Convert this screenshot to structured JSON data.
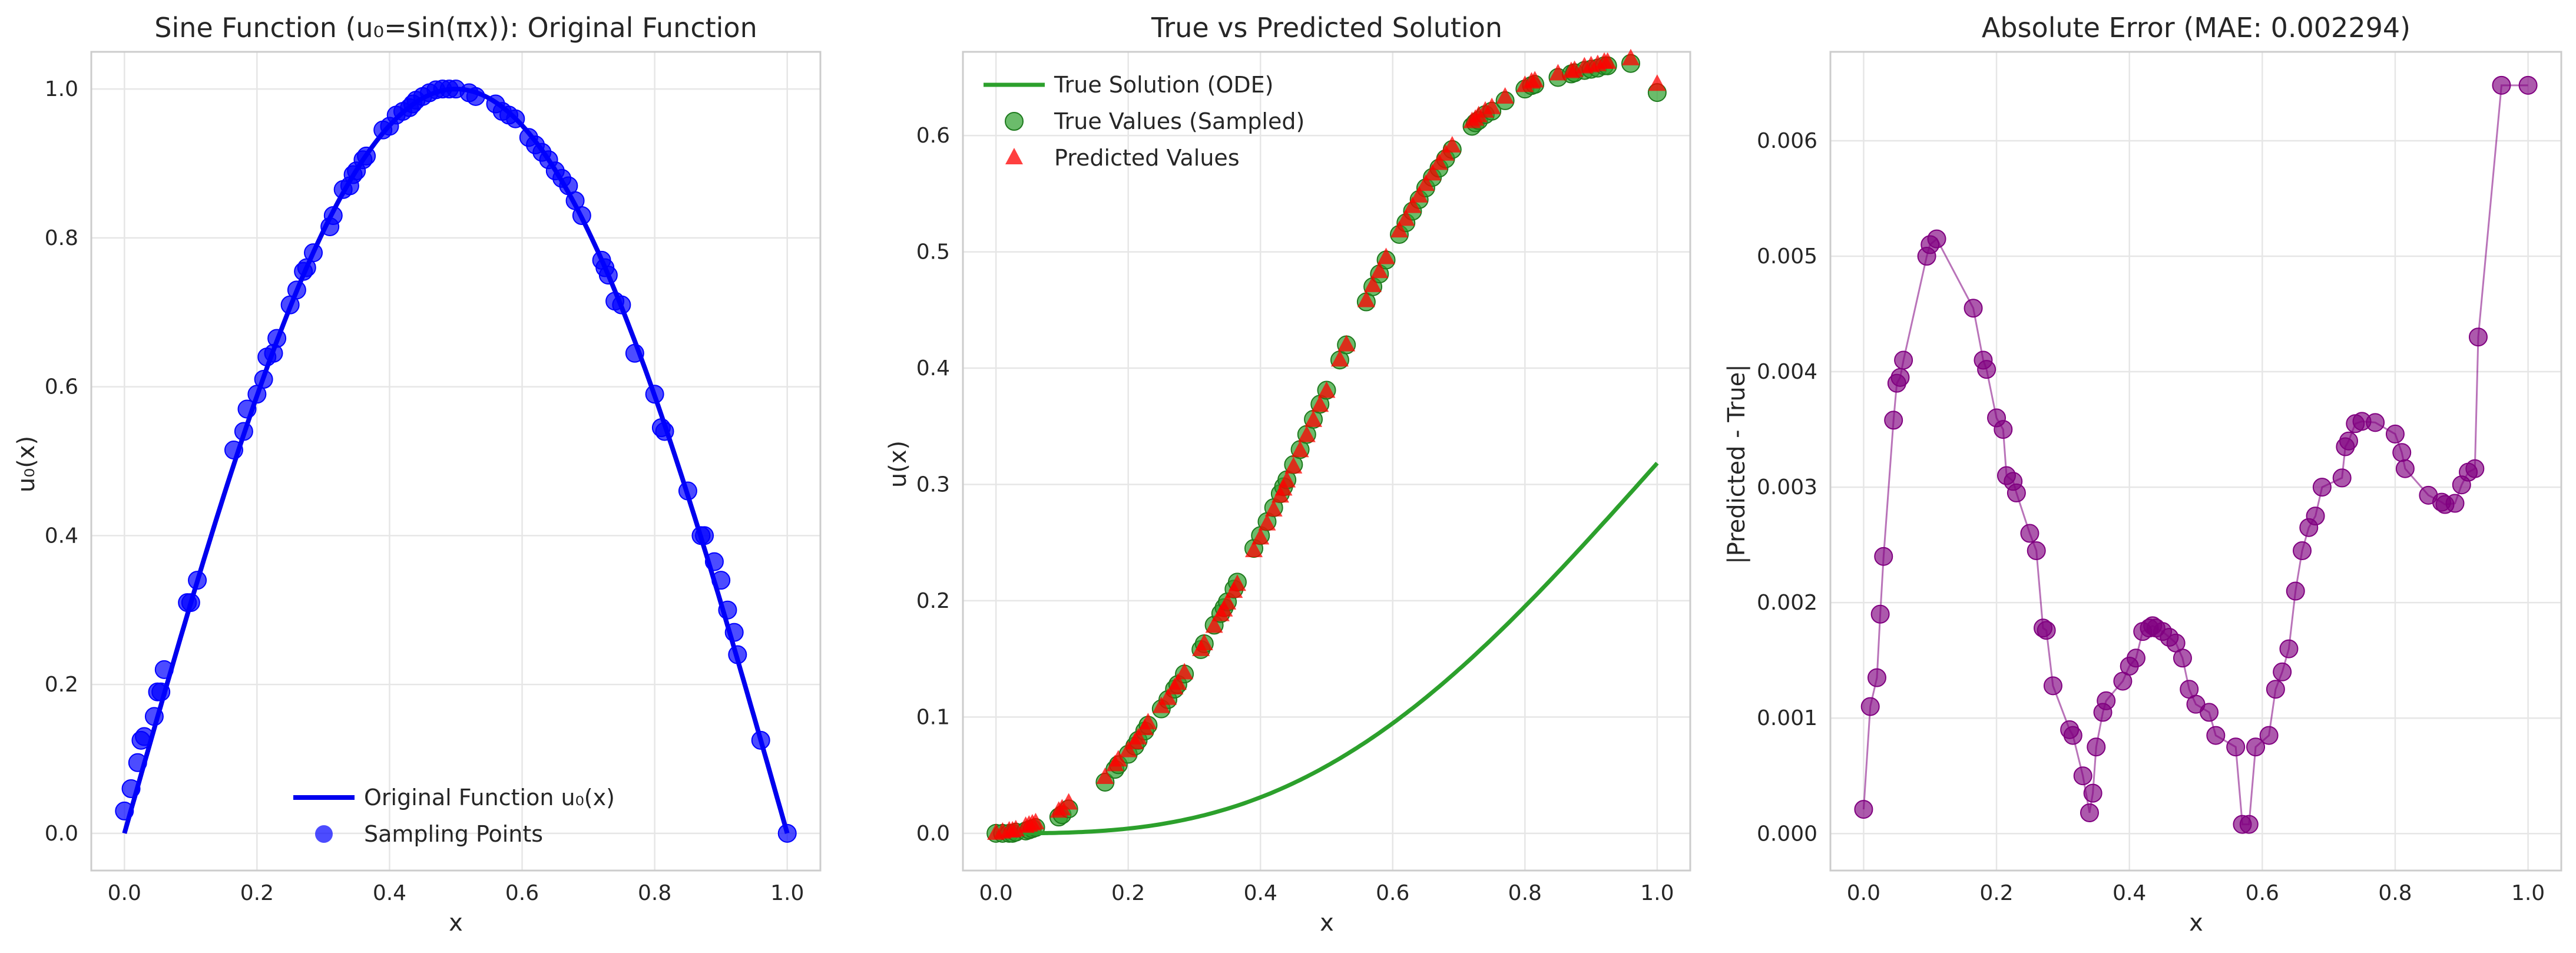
{
  "chart_data": [
    {
      "type": "line",
      "title": "Sine Function (u₀=sin(πx)): Original Function",
      "xlabel": "x",
      "ylabel": "u₀(x)",
      "xlim": [
        -0.05,
        1.05
      ],
      "ylim": [
        -0.05,
        1.05
      ],
      "xticks": [
        "0.0",
        "0.2",
        "0.4",
        "0.6",
        "0.8",
        "1.0"
      ],
      "yticks": [
        "0.0",
        "0.2",
        "0.4",
        "0.6",
        "0.8",
        "1.0"
      ],
      "grid": true,
      "legend_position": "lower-center",
      "colors": {
        "line": "#0000ee",
        "points": "#0000ff"
      },
      "series": [
        {
          "name": "Original Function u₀(x)",
          "kind": "line",
          "function": "sin(πx)",
          "x_range": [
            0,
            1
          ]
        },
        {
          "name": "Sampling Points",
          "kind": "scatter",
          "x": [
            0.0,
            0.01,
            0.02,
            0.025,
            0.03,
            0.045,
            0.05,
            0.055,
            0.06,
            0.095,
            0.1,
            0.11,
            0.165,
            0.18,
            0.185,
            0.2,
            0.21,
            0.215,
            0.225,
            0.23,
            0.25,
            0.26,
            0.27,
            0.275,
            0.285,
            0.31,
            0.315,
            0.33,
            0.34,
            0.345,
            0.35,
            0.36,
            0.365,
            0.39,
            0.4,
            0.41,
            0.42,
            0.43,
            0.435,
            0.44,
            0.45,
            0.46,
            0.47,
            0.48,
            0.49,
            0.5,
            0.52,
            0.53,
            0.56,
            0.57,
            0.58,
            0.59,
            0.61,
            0.62,
            0.63,
            0.64,
            0.65,
            0.66,
            0.67,
            0.68,
            0.69,
            0.72,
            0.725,
            0.73,
            0.74,
            0.75,
            0.77,
            0.8,
            0.81,
            0.815,
            0.85,
            0.87,
            0.875,
            0.89,
            0.9,
            0.91,
            0.92,
            0.925,
            0.96,
            1.0
          ],
          "y": [
            0.03,
            0.06,
            0.095,
            0.125,
            0.13,
            0.157,
            0.19,
            0.19,
            0.22,
            0.31,
            0.31,
            0.34,
            0.515,
            0.54,
            0.57,
            0.59,
            0.61,
            0.64,
            0.645,
            0.665,
            0.71,
            0.73,
            0.755,
            0.76,
            0.78,
            0.815,
            0.83,
            0.865,
            0.87,
            0.885,
            0.89,
            0.905,
            0.91,
            0.945,
            0.95,
            0.965,
            0.97,
            0.975,
            0.98,
            0.985,
            0.99,
            0.995,
            0.999,
            1.0,
            1.0,
            1.0,
            0.995,
            0.99,
            0.98,
            0.97,
            0.965,
            0.96,
            0.935,
            0.925,
            0.915,
            0.905,
            0.89,
            0.88,
            0.87,
            0.85,
            0.83,
            0.77,
            0.76,
            0.75,
            0.715,
            0.71,
            0.645,
            0.59,
            0.545,
            0.54,
            0.46,
            0.4,
            0.4,
            0.365,
            0.34,
            0.3,
            0.27,
            0.24,
            0.125,
            0.0
          ]
        }
      ]
    },
    {
      "type": "line",
      "title": "True vs Predicted Solution",
      "xlabel": "x",
      "ylabel": "u(x)",
      "xlim": [
        -0.05,
        1.05
      ],
      "ylim": [
        -0.032,
        0.672
      ],
      "xticks": [
        "0.0",
        "0.2",
        "0.4",
        "0.6",
        "0.8",
        "1.0"
      ],
      "yticks": [
        "0.0",
        "0.1",
        "0.2",
        "0.3",
        "0.4",
        "0.5",
        "0.6"
      ],
      "grid": true,
      "legend_position": "upper-left",
      "colors": {
        "true_line": "#2ca02c",
        "true_points": "#2ca02c",
        "predicted": "#ff0000"
      },
      "series": [
        {
          "name": "True Solution (ODE)",
          "kind": "line",
          "function": "(x - sin(πx)/π)/π",
          "x_range": [
            0,
            1
          ]
        },
        {
          "name": "True Values (Sampled)",
          "kind": "scatter",
          "marker": "circle",
          "x": [
            0.0,
            0.01,
            0.02,
            0.025,
            0.03,
            0.045,
            0.05,
            0.055,
            0.06,
            0.095,
            0.1,
            0.11,
            0.165,
            0.18,
            0.185,
            0.2,
            0.21,
            0.215,
            0.225,
            0.23,
            0.25,
            0.26,
            0.27,
            0.275,
            0.285,
            0.31,
            0.315,
            0.33,
            0.34,
            0.345,
            0.35,
            0.36,
            0.365,
            0.39,
            0.4,
            0.41,
            0.42,
            0.43,
            0.435,
            0.44,
            0.45,
            0.46,
            0.47,
            0.48,
            0.49,
            0.5,
            0.52,
            0.53,
            0.56,
            0.57,
            0.58,
            0.59,
            0.61,
            0.62,
            0.63,
            0.64,
            0.65,
            0.66,
            0.67,
            0.68,
            0.69,
            0.72,
            0.725,
            0.73,
            0.74,
            0.75,
            0.77,
            0.8,
            0.81,
            0.815,
            0.85,
            0.87,
            0.875,
            0.89,
            0.9,
            0.91,
            0.92,
            0.925,
            0.96,
            1.0
          ],
          "y": [
            0.0,
            0.0,
            0.0,
            0.0,
            0.001,
            0.002,
            0.003,
            0.004,
            0.005,
            0.014,
            0.016,
            0.021,
            0.044,
            0.055,
            0.059,
            0.068,
            0.075,
            0.08,
            0.088,
            0.093,
            0.107,
            0.115,
            0.124,
            0.128,
            0.137,
            0.158,
            0.163,
            0.179,
            0.189,
            0.194,
            0.199,
            0.21,
            0.216,
            0.245,
            0.256,
            0.268,
            0.28,
            0.292,
            0.298,
            0.304,
            0.317,
            0.33,
            0.343,
            0.356,
            0.369,
            0.381,
            0.407,
            0.42,
            0.457,
            0.47,
            0.481,
            0.493,
            0.515,
            0.525,
            0.535,
            0.545,
            0.555,
            0.564,
            0.572,
            0.58,
            0.588,
            0.608,
            0.611,
            0.613,
            0.618,
            0.621,
            0.63,
            0.64,
            0.643,
            0.644,
            0.65,
            0.653,
            0.654,
            0.656,
            0.657,
            0.658,
            0.66,
            0.66,
            0.662,
            0.637
          ]
        },
        {
          "name": "Predicted Values",
          "kind": "scatter",
          "marker": "triangle",
          "x": [
            0.0,
            0.01,
            0.02,
            0.025,
            0.03,
            0.045,
            0.05,
            0.055,
            0.06,
            0.095,
            0.1,
            0.11,
            0.165,
            0.18,
            0.185,
            0.2,
            0.21,
            0.215,
            0.225,
            0.23,
            0.25,
            0.26,
            0.27,
            0.275,
            0.285,
            0.31,
            0.315,
            0.33,
            0.34,
            0.345,
            0.35,
            0.36,
            0.365,
            0.39,
            0.4,
            0.41,
            0.42,
            0.43,
            0.435,
            0.44,
            0.45,
            0.46,
            0.47,
            0.48,
            0.49,
            0.5,
            0.52,
            0.53,
            0.56,
            0.57,
            0.58,
            0.59,
            0.61,
            0.62,
            0.63,
            0.64,
            0.65,
            0.66,
            0.67,
            0.68,
            0.69,
            0.72,
            0.725,
            0.73,
            0.74,
            0.75,
            0.77,
            0.8,
            0.81,
            0.815,
            0.85,
            0.87,
            0.875,
            0.89,
            0.9,
            0.91,
            0.92,
            0.925,
            0.96,
            1.0
          ],
          "y": [
            0.0,
            0.001,
            0.002,
            0.002,
            0.003,
            0.006,
            0.007,
            0.008,
            0.009,
            0.019,
            0.021,
            0.026,
            0.048,
            0.059,
            0.063,
            0.071,
            0.078,
            0.082,
            0.09,
            0.095,
            0.109,
            0.116,
            0.125,
            0.129,
            0.138,
            0.158,
            0.163,
            0.178,
            0.188,
            0.192,
            0.198,
            0.208,
            0.214,
            0.243,
            0.254,
            0.266,
            0.278,
            0.29,
            0.296,
            0.303,
            0.315,
            0.329,
            0.342,
            0.355,
            0.368,
            0.38,
            0.407,
            0.42,
            0.458,
            0.471,
            0.483,
            0.495,
            0.518,
            0.528,
            0.539,
            0.548,
            0.558,
            0.567,
            0.576,
            0.584,
            0.591,
            0.612,
            0.614,
            0.617,
            0.621,
            0.624,
            0.633,
            0.643,
            0.646,
            0.647,
            0.653,
            0.655,
            0.656,
            0.659,
            0.66,
            0.661,
            0.663,
            0.663,
            0.666,
            0.644
          ]
        }
      ]
    },
    {
      "type": "line",
      "title": "Absolute Error (MAE: 0.002294)",
      "xlabel": "x",
      "ylabel": "|Predicted - True|",
      "xlim": [
        -0.05,
        1.05
      ],
      "ylim": [
        -0.00032,
        0.00677
      ],
      "xticks": [
        "0.0",
        "0.2",
        "0.4",
        "0.6",
        "0.8",
        "1.0"
      ],
      "yticks": [
        "0.000",
        "0.001",
        "0.002",
        "0.003",
        "0.004",
        "0.005",
        "0.006"
      ],
      "grid": true,
      "colors": {
        "line": "#800080",
        "points": "#800080"
      },
      "series": [
        {
          "kind": "line+scatter",
          "x": [
            0.0,
            0.01,
            0.02,
            0.025,
            0.03,
            0.045,
            0.05,
            0.055,
            0.06,
            0.095,
            0.1,
            0.11,
            0.165,
            0.18,
            0.185,
            0.2,
            0.21,
            0.215,
            0.225,
            0.23,
            0.25,
            0.26,
            0.27,
            0.275,
            0.285,
            0.31,
            0.315,
            0.33,
            0.34,
            0.345,
            0.35,
            0.36,
            0.365,
            0.39,
            0.4,
            0.41,
            0.42,
            0.43,
            0.435,
            0.44,
            0.45,
            0.46,
            0.47,
            0.48,
            0.49,
            0.5,
            0.52,
            0.53,
            0.56,
            0.57,
            0.58,
            0.59,
            0.61,
            0.62,
            0.63,
            0.64,
            0.65,
            0.66,
            0.67,
            0.68,
            0.69,
            0.72,
            0.725,
            0.73,
            0.74,
            0.75,
            0.77,
            0.8,
            0.81,
            0.815,
            0.85,
            0.87,
            0.875,
            0.89,
            0.9,
            0.91,
            0.92,
            0.925,
            0.96,
            1.0
          ],
          "y": [
            0.00021,
            0.0011,
            0.00135,
            0.0019,
            0.0024,
            0.00358,
            0.0039,
            0.00395,
            0.0041,
            0.005,
            0.0051,
            0.00515,
            0.00455,
            0.0041,
            0.00402,
            0.0036,
            0.0035,
            0.0031,
            0.00305,
            0.00295,
            0.0026,
            0.00245,
            0.00178,
            0.00176,
            0.00128,
            0.0009,
            0.00085,
            0.0005,
            0.00018,
            0.00035,
            0.00075,
            0.00105,
            0.00115,
            0.00132,
            0.00145,
            0.00152,
            0.00175,
            0.00178,
            0.0018,
            0.00178,
            0.00175,
            0.0017,
            0.00165,
            0.00152,
            0.00125,
            0.00112,
            0.00105,
            0.00085,
            0.00075,
            8e-05,
            8e-05,
            0.00075,
            0.00085,
            0.00125,
            0.0014,
            0.0016,
            0.0021,
            0.00245,
            0.00265,
            0.00275,
            0.003,
            0.00308,
            0.00335,
            0.0034,
            0.00355,
            0.00357,
            0.00356,
            0.00346,
            0.0033,
            0.00316,
            0.00293,
            0.00287,
            0.00285,
            0.00286,
            0.00302,
            0.00313,
            0.00316,
            0.0043,
            0.00648,
            0.00648
          ]
        }
      ]
    }
  ]
}
